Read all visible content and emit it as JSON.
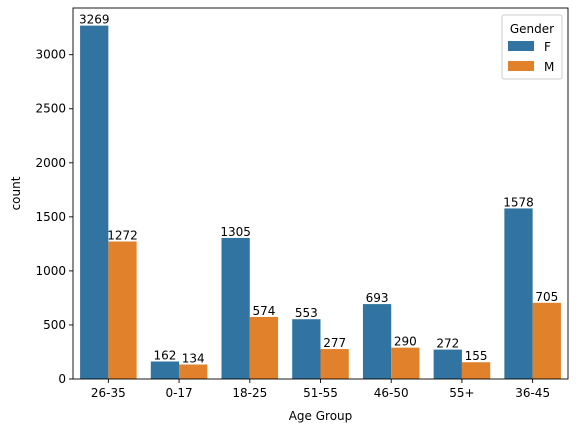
{
  "chart_data": {
    "type": "bar",
    "title": "",
    "xlabel": "Age Group",
    "ylabel": "count",
    "categories": [
      "26-35",
      "0-17",
      "18-25",
      "51-55",
      "46-50",
      "55+",
      "36-45"
    ],
    "series": [
      {
        "name": "F",
        "color": "#3274a1",
        "values": [
          3269,
          162,
          1305,
          553,
          693,
          272,
          1578
        ]
      },
      {
        "name": "M",
        "color": "#e1812c",
        "values": [
          1272,
          134,
          574,
          277,
          290,
          155,
          705
        ]
      }
    ],
    "ylim": [
      0,
      3432
    ],
    "yticks": [
      0,
      500,
      1000,
      1500,
      2000,
      2500,
      3000
    ],
    "grid": false,
    "legend": {
      "title": "Gender",
      "placement": "top-right"
    }
  }
}
